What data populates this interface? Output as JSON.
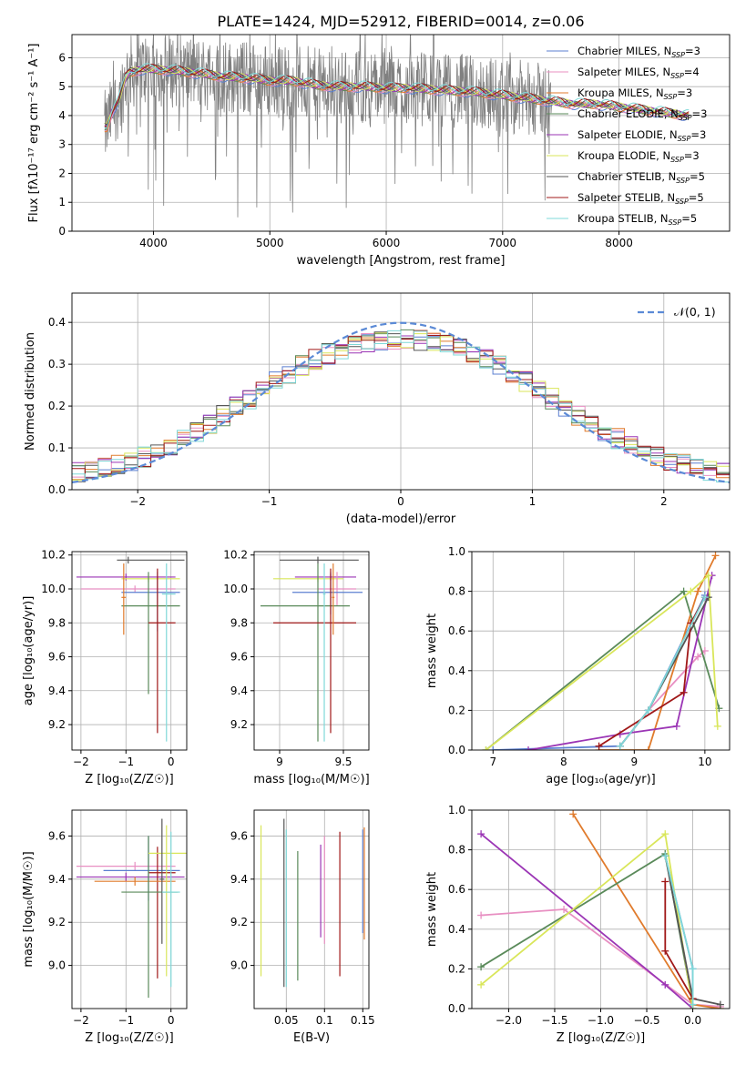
{
  "figure": {
    "title": "PLATE=1424, MJD=52912, FIBERID=0014, z=0.06"
  },
  "models": [
    {
      "imf": "Chabrier",
      "lib": "MILES",
      "nssp": "3",
      "color": "#5b7fd0"
    },
    {
      "imf": "Salpeter",
      "lib": "MILES",
      "nssp": "4",
      "color": "#e88fc2"
    },
    {
      "imf": "Kroupa",
      "lib": "MILES",
      "nssp": "3",
      "color": "#e07b2c"
    },
    {
      "imf": "Chabrier",
      "lib": "ELODIE",
      "nssp": "3",
      "color": "#5a8a5a"
    },
    {
      "imf": "Salpeter",
      "lib": "ELODIE",
      "nssp": "3",
      "color": "#9b35b5"
    },
    {
      "imf": "Kroupa",
      "lib": "ELODIE",
      "nssp": "3",
      "color": "#d9e65a"
    },
    {
      "imf": "Chabrier",
      "lib": "STELIB",
      "nssp": "5",
      "color": "#555555"
    },
    {
      "imf": "Salpeter",
      "lib": "STELIB",
      "nssp": "5",
      "color": "#a01818"
    },
    {
      "imf": "Kroupa",
      "lib": "STELIB",
      "nssp": "5",
      "color": "#7fd8d8"
    }
  ],
  "chart_data": [
    {
      "id": "spectrum",
      "type": "line",
      "xlabel": "wavelength [Angstrom, rest frame]",
      "ylabel": "Flux [fλ10⁻¹⁷ erg cm⁻² s⁻¹ A⁻¹]",
      "xlim": [
        3300,
        8950
      ],
      "ylim": [
        0,
        6.8
      ],
      "xticks": [
        4000,
        5000,
        6000,
        7000,
        8000
      ],
      "yticks": [
        0,
        1,
        2,
        3,
        4,
        5,
        6
      ],
      "data_color": "#808080",
      "continuum": [
        [
          3600,
          3.6
        ],
        [
          3650,
          4.2
        ],
        [
          3700,
          4.5
        ],
        [
          3760,
          5.3
        ],
        [
          3800,
          5.5
        ],
        [
          3900,
          5.6
        ],
        [
          4000,
          5.6
        ],
        [
          4200,
          5.55
        ],
        [
          4400,
          5.45
        ],
        [
          4600,
          5.35
        ],
        [
          4800,
          5.3
        ],
        [
          5000,
          5.2
        ],
        [
          5200,
          5.2
        ],
        [
          5400,
          5.05
        ],
        [
          5600,
          5.0
        ],
        [
          5800,
          5.0
        ],
        [
          6000,
          4.95
        ],
        [
          6200,
          4.95
        ],
        [
          6400,
          4.9
        ],
        [
          6600,
          4.85
        ],
        [
          6800,
          4.8
        ],
        [
          7000,
          4.7
        ],
        [
          7200,
          4.6
        ],
        [
          7400,
          4.5
        ],
        [
          7600,
          4.4
        ],
        [
          7800,
          4.4
        ],
        [
          8000,
          4.3
        ],
        [
          8200,
          4.2
        ],
        [
          8400,
          4.1
        ],
        [
          8600,
          4.0
        ]
      ]
    },
    {
      "id": "residuals",
      "type": "bar",
      "xlabel": "(data-model)/error",
      "ylabel": "Normed distribution",
      "xlim": [
        -2.5,
        2.5
      ],
      "ylim": [
        0,
        0.47
      ],
      "xticks": [
        -2,
        -1,
        0,
        1,
        2
      ],
      "yticks": [
        0.0,
        0.1,
        0.2,
        0.3,
        0.4
      ],
      "legend": "𝒩(0, 1)",
      "gauss_color": "#5b8ad6"
    },
    {
      "id": "age_vs_Z",
      "type": "scatter",
      "xlabel": "Z [log₁₀(Z/Z☉)]",
      "ylabel": "age  [log₁₀(age/yr)]",
      "xlim": [
        -2.2,
        0.35
      ],
      "ylim": [
        9.05,
        10.22
      ],
      "xticks": [
        -2,
        -1,
        0
      ],
      "yticks": [
        9.2,
        9.4,
        9.6,
        9.8,
        10.0,
        10.2
      ],
      "points": [
        {
          "m": 6,
          "x": -0.95,
          "xe": [
            -1.2,
            0.3
          ],
          "y": 10.17,
          "ye": [
            10.15,
            10.19
          ]
        },
        {
          "m": 4,
          "x": -1.0,
          "xe": [
            -2.1,
            0.1
          ],
          "y": 10.07,
          "ye": [
            10.05,
            10.09
          ]
        },
        {
          "m": 5,
          "x": -0.5,
          "xe": [
            -1.1,
            0.2
          ],
          "y": 10.06,
          "ye": [
            10.04,
            10.08
          ]
        },
        {
          "m": 1,
          "x": -0.8,
          "xe": [
            -2.0,
            0.1
          ],
          "y": 10.0,
          "ye": [
            9.98,
            10.02
          ]
        },
        {
          "m": 0,
          "x": -0.3,
          "xe": [
            -1.1,
            0.2
          ],
          "y": 9.98,
          "ye": [
            9.75,
            10.1
          ]
        },
        {
          "m": 3,
          "x": -0.5,
          "xe": [
            -1.1,
            0.2
          ],
          "y": 9.9,
          "ye": [
            9.38,
            10.1
          ]
        },
        {
          "m": 7,
          "x": -0.3,
          "xe": [
            -0.5,
            0.1
          ],
          "y": 9.8,
          "ye": [
            9.15,
            10.12
          ]
        },
        {
          "m": 8,
          "x": -0.1,
          "xe": [
            -0.2,
            0.1
          ],
          "y": 9.97,
          "ye": [
            9.1,
            10.15
          ]
        },
        {
          "m": 2,
          "x": -1.05,
          "xe": [
            -1.1,
            -1.0
          ],
          "y": 9.95,
          "ye": [
            9.73,
            10.15
          ]
        }
      ]
    },
    {
      "id": "age_vs_mass",
      "type": "scatter",
      "xlabel": "mass [log₁₀(M/M☉)]",
      "ylabel": "",
      "xlim": [
        8.8,
        9.7
      ],
      "ylim": [
        9.05,
        10.22
      ],
      "xticks": [
        9.0,
        9.5
      ],
      "yticks": [
        9.2,
        9.4,
        9.6,
        9.8,
        10.0,
        10.2
      ],
      "points": [
        {
          "m": 6,
          "x": 9.3,
          "xe": [
            9.0,
            9.62
          ],
          "y": 10.17,
          "ye": [
            10.15,
            10.19
          ]
        },
        {
          "m": 4,
          "x": 9.4,
          "xe": [
            9.12,
            9.6
          ],
          "y": 10.07,
          "ye": [
            10.05,
            10.09
          ]
        },
        {
          "m": 5,
          "x": 9.3,
          "xe": [
            8.95,
            9.5
          ],
          "y": 10.06,
          "ye": [
            10.04,
            10.08
          ]
        },
        {
          "m": 1,
          "x": 9.45,
          "xe": [
            9.3,
            9.6
          ],
          "y": 10.0,
          "ye": [
            9.9,
            10.1
          ]
        },
        {
          "m": 0,
          "x": 9.4,
          "xe": [
            9.1,
            9.65
          ],
          "y": 9.98,
          "ye": [
            9.85,
            10.1
          ]
        },
        {
          "m": 3,
          "x": 9.3,
          "xe": [
            8.85,
            9.55
          ],
          "y": 9.9,
          "ye": [
            9.1,
            10.15
          ]
        },
        {
          "m": 7,
          "x": 9.4,
          "xe": [
            8.95,
            9.6
          ],
          "y": 9.8,
          "ye": [
            9.15,
            10.12
          ]
        },
        {
          "m": 8,
          "x": 9.35,
          "xe": [
            9.34,
            9.36
          ],
          "y": 9.97,
          "ye": [
            9.1,
            10.15
          ]
        },
        {
          "m": 2,
          "x": 9.42,
          "xe": [
            9.41,
            9.43
          ],
          "y": 9.95,
          "ye": [
            9.73,
            10.15
          ]
        }
      ]
    },
    {
      "id": "weight_vs_age",
      "type": "line",
      "xlabel": "age  [log₁₀(age/yr)]",
      "ylabel": "mass weight",
      "xlim": [
        6.7,
        10.35
      ],
      "ylim": [
        0,
        1.0
      ],
      "xticks": [
        7,
        8,
        9,
        10
      ],
      "yticks": [
        0.0,
        0.2,
        0.4,
        0.6,
        0.8,
        1.0
      ],
      "series": [
        {
          "m": 0,
          "pts": [
            [
              7.0,
              0.0
            ],
            [
              8.8,
              0.02
            ],
            [
              9.2,
              0.2
            ],
            [
              10.0,
              0.78
            ]
          ]
        },
        {
          "m": 1,
          "pts": [
            [
              8.8,
              0.02
            ],
            [
              9.2,
              0.2
            ],
            [
              9.9,
              0.47
            ],
            [
              10.0,
              0.5
            ]
          ]
        },
        {
          "m": 2,
          "pts": [
            [
              8.5,
              0.0
            ],
            [
              9.2,
              0.0
            ],
            [
              9.9,
              0.8
            ],
            [
              10.15,
              0.98
            ]
          ]
        },
        {
          "m": 3,
          "pts": [
            [
              6.9,
              0.0
            ],
            [
              9.7,
              0.8
            ],
            [
              10.2,
              0.21
            ]
          ]
        },
        {
          "m": 4,
          "pts": [
            [
              7.5,
              0.0
            ],
            [
              8.8,
              0.08
            ],
            [
              9.6,
              0.12
            ],
            [
              10.1,
              0.88
            ]
          ]
        },
        {
          "m": 5,
          "pts": [
            [
              6.9,
              0.0
            ],
            [
              9.8,
              0.8
            ],
            [
              10.05,
              0.88
            ],
            [
              10.18,
              0.12
            ]
          ]
        },
        {
          "m": 6,
          "pts": [
            [
              8.8,
              0.02
            ],
            [
              9.2,
              0.2
            ],
            [
              10.05,
              0.77
            ]
          ]
        },
        {
          "m": 7,
          "pts": [
            [
              8.5,
              0.02
            ],
            [
              9.7,
              0.29
            ],
            [
              9.8,
              0.64
            ],
            [
              10.0,
              0.77
            ]
          ]
        },
        {
          "m": 8,
          "pts": [
            [
              8.8,
              0.02
            ],
            [
              9.2,
              0.2
            ],
            [
              10.0,
              0.77
            ]
          ]
        }
      ]
    },
    {
      "id": "mass_vs_Z",
      "type": "scatter",
      "xlabel": "Z [log₁₀(Z/Z☉)]",
      "ylabel": "mass [log₁₀(M/M☉)]",
      "xlim": [
        -2.2,
        0.35
      ],
      "ylim": [
        8.8,
        9.72
      ],
      "xticks": [
        -2,
        -1,
        0
      ],
      "yticks": [
        9.0,
        9.2,
        9.4,
        9.6
      ],
      "points": [
        {
          "m": 1,
          "x": -0.8,
          "xe": [
            -2.1,
            0.1
          ],
          "y": 9.46,
          "ye": [
            9.44,
            9.48
          ]
        },
        {
          "m": 0,
          "x": -0.5,
          "xe": [
            -1.5,
            0.2
          ],
          "y": 9.44,
          "ye": [
            9.3,
            9.6
          ]
        },
        {
          "m": 4,
          "x": -1.0,
          "xe": [
            -2.1,
            0.3
          ],
          "y": 9.41,
          "ye": [
            9.39,
            9.43
          ]
        },
        {
          "m": 7,
          "x": -0.3,
          "xe": [
            -0.5,
            0.1
          ],
          "y": 9.43,
          "ye": [
            8.94,
            9.55
          ]
        },
        {
          "m": 2,
          "x": -0.8,
          "xe": [
            -1.7,
            0.1
          ],
          "y": 9.39,
          "ye": [
            9.37,
            9.41
          ]
        },
        {
          "m": 3,
          "x": -0.5,
          "xe": [
            -1.1,
            0.15
          ],
          "y": 9.34,
          "ye": [
            8.85,
            9.6
          ]
        },
        {
          "m": 5,
          "x": -0.1,
          "xe": [
            -0.5,
            0.35
          ],
          "y": 9.52,
          "ye": [
            8.95,
            9.65
          ]
        },
        {
          "m": 6,
          "x": -0.2,
          "xe": [
            -0.25,
            -0.15
          ],
          "y": 9.4,
          "ye": [
            9.1,
            9.68
          ]
        },
        {
          "m": 8,
          "x": 0.0,
          "xe": [
            -0.2,
            0.2
          ],
          "y": 9.34,
          "ye": [
            8.9,
            9.62
          ]
        }
      ]
    },
    {
      "id": "mass_vs_ebv",
      "type": "scatter",
      "xlabel": "E(B-V)",
      "ylabel": "",
      "xlim": [
        0.008,
        0.158
      ],
      "ylim": [
        8.8,
        9.72
      ],
      "xticks": [
        0.05,
        0.1,
        0.15
      ],
      "yticks": [
        9.0,
        9.2,
        9.4,
        9.6
      ],
      "points": [
        {
          "m": 5,
          "x": 0.017,
          "ye": [
            8.95,
            9.65
          ]
        },
        {
          "m": 6,
          "x": 0.047,
          "ye": [
            8.9,
            9.68
          ]
        },
        {
          "m": 8,
          "x": 0.05,
          "ye": [
            8.9,
            9.63
          ]
        },
        {
          "m": 3,
          "x": 0.065,
          "ye": [
            8.93,
            9.53
          ]
        },
        {
          "m": 4,
          "x": 0.095,
          "ye": [
            9.13,
            9.56
          ]
        },
        {
          "m": 1,
          "x": 0.1,
          "ye": [
            9.1,
            9.6
          ]
        },
        {
          "m": 7,
          "x": 0.12,
          "ye": [
            8.95,
            9.62
          ]
        },
        {
          "m": 0,
          "x": 0.15,
          "ye": [
            9.15,
            9.63
          ]
        },
        {
          "m": 2,
          "x": 0.152,
          "ye": [
            9.12,
            9.64
          ]
        }
      ]
    },
    {
      "id": "weight_vs_Z",
      "type": "line",
      "xlabel": "Z [log₁₀(Z/Z☉)]",
      "ylabel": "mass weight",
      "xlim": [
        -2.4,
        0.4
      ],
      "ylim": [
        0,
        1.0
      ],
      "xticks": [
        -2.0,
        -1.5,
        -1.0,
        -0.5,
        0.0
      ],
      "yticks": [
        0.0,
        0.2,
        0.4,
        0.6,
        0.8,
        1.0
      ],
      "series": [
        {
          "m": 0,
          "pts": [
            [
              -0.3,
              0.77
            ],
            [
              0.0,
              0.2
            ],
            [
              0.0,
              0.02
            ]
          ]
        },
        {
          "m": 1,
          "pts": [
            [
              -2.3,
              0.47
            ],
            [
              -1.4,
              0.5
            ],
            [
              0.0,
              0.02
            ],
            [
              0.3,
              0.01
            ]
          ]
        },
        {
          "m": 2,
          "pts": [
            [
              -1.3,
              0.98
            ],
            [
              0.0,
              0.02
            ],
            [
              0.3,
              0.0
            ]
          ]
        },
        {
          "m": 3,
          "pts": [
            [
              -2.3,
              0.21
            ],
            [
              -0.3,
              0.78
            ],
            [
              0.0,
              0.02
            ]
          ]
        },
        {
          "m": 4,
          "pts": [
            [
              -2.3,
              0.88
            ],
            [
              -0.3,
              0.12
            ],
            [
              0.0,
              0.0
            ]
          ]
        },
        {
          "m": 5,
          "pts": [
            [
              -2.3,
              0.12
            ],
            [
              -0.3,
              0.88
            ],
            [
              0.0,
              0.0
            ]
          ]
        },
        {
          "m": 6,
          "pts": [
            [
              -0.3,
              0.77
            ],
            [
              0.0,
              0.05
            ],
            [
              0.3,
              0.02
            ]
          ]
        },
        {
          "m": 7,
          "pts": [
            [
              -0.3,
              0.64
            ],
            [
              -0.3,
              0.29
            ],
            [
              0.0,
              0.05
            ]
          ]
        },
        {
          "m": 8,
          "pts": [
            [
              -0.3,
              0.77
            ],
            [
              0.0,
              0.2
            ],
            [
              0.0,
              0.02
            ]
          ]
        }
      ]
    }
  ]
}
